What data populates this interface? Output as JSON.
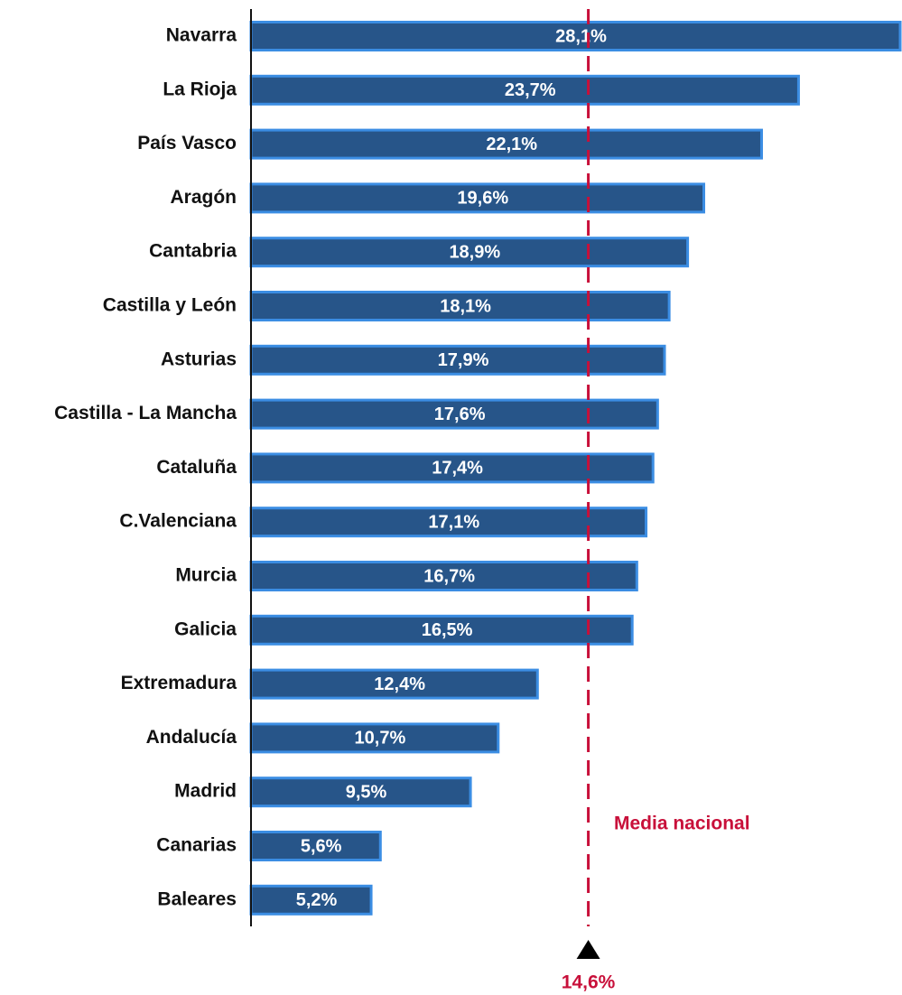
{
  "chart_data": {
    "type": "barh",
    "categories": [
      "Navarra",
      "La Rioja",
      "País Vasco",
      "Aragón",
      "Cantabria",
      "Castilla y León",
      "Asturias",
      "Castilla - La Mancha",
      "Cataluña",
      "C.Valenciana",
      "Murcia",
      "Galicia",
      "Extremadura",
      "Andalucía",
      "Madrid",
      "Canarias",
      "Baleares"
    ],
    "values": [
      28.1,
      23.7,
      22.1,
      19.6,
      18.9,
      18.1,
      17.9,
      17.6,
      17.4,
      17.1,
      16.7,
      16.5,
      12.4,
      10.7,
      9.5,
      5.6,
      5.2
    ],
    "value_labels": [
      "28,1%",
      "23,7%",
      "22,1%",
      "19,6%",
      "18,9%",
      "18,1%",
      "17,9%",
      "17,6%",
      "17,4%",
      "17,1%",
      "16,7%",
      "16,5%",
      "12,4%",
      "10,7%",
      "9,5%",
      "5,6%",
      "5,2%"
    ],
    "color": "#275589",
    "edge_color": "#3b8de3",
    "reference_line": {
      "value": 14.6,
      "label": "14,6%",
      "annotation": "Media nacional",
      "color": "#c8103a"
    }
  }
}
